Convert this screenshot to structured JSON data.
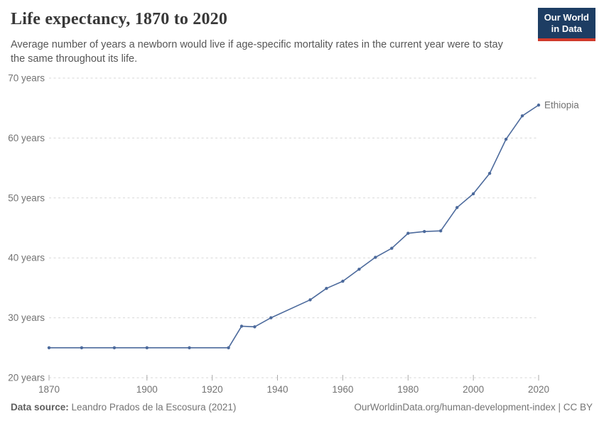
{
  "header": {
    "title": "Life expectancy, 1870 to 2020",
    "subtitle": {
      "line1": "Average number of years a newborn would live if age-specific mortality rates in the current year were to stay",
      "line2": "the same throughout its life."
    }
  },
  "logo": {
    "line1": "Our World",
    "line2": "in Data",
    "bg_color": "#1d3d63",
    "accent_color": "#d13a2b"
  },
  "chart_data": {
    "type": "line",
    "title": "Life expectancy, 1870 to 2020",
    "entity_label": "Ethiopia",
    "unit": "years",
    "xlim": [
      1870,
      2020
    ],
    "ylim": [
      20,
      70
    ],
    "x_ticks": [
      1870,
      1900,
      1920,
      1940,
      1960,
      1980,
      2000,
      2020
    ],
    "y_ticks": [
      20,
      30,
      40,
      50,
      60,
      70
    ],
    "y_tick_suffix": " years",
    "grid": "dashed-horizontal",
    "legend_position": "end-of-line",
    "series": [
      {
        "name": "Ethiopia",
        "color": "#4c6a9c",
        "points": [
          [
            1870,
            25
          ],
          [
            1880,
            25
          ],
          [
            1890,
            25
          ],
          [
            1900,
            25
          ],
          [
            1913,
            25
          ],
          [
            1925,
            25
          ],
          [
            1929,
            28.6
          ],
          [
            1933,
            28.5
          ],
          [
            1938,
            30
          ],
          [
            1950,
            33
          ],
          [
            1955,
            34.9
          ],
          [
            1960,
            36.1
          ],
          [
            1965,
            38.1
          ],
          [
            1970,
            40.1
          ],
          [
            1975,
            41.6
          ],
          [
            1980,
            44.1
          ],
          [
            1985,
            44.4
          ],
          [
            1990,
            44.5
          ],
          [
            1995,
            48.4
          ],
          [
            2000,
            50.7
          ],
          [
            2005,
            54.1
          ],
          [
            2010,
            59.8
          ],
          [
            2015,
            63.7
          ],
          [
            2020,
            65.5
          ]
        ]
      }
    ]
  },
  "footer": {
    "source_label": "Data source:",
    "source_text": " Leandro Prados de la Escosura (2021)",
    "rights_link": "OurWorldinData.org/human-development-index",
    "rights_license": " | CC BY"
  }
}
